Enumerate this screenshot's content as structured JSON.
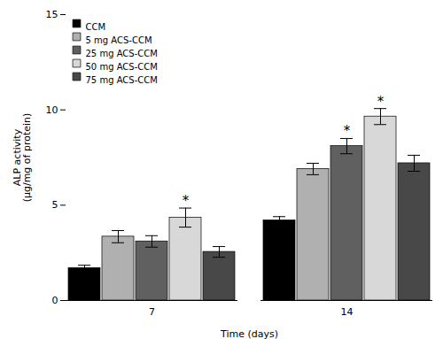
{
  "chart_data": {
    "type": "bar",
    "categories": [
      "7",
      "14"
    ],
    "xlabel": "Time (days)",
    "ylabel": "ALP activity\n(μg/mg of protein)",
    "series": [
      {
        "name": "CCM",
        "color": "#000000",
        "values": [
          1.7,
          4.2
        ],
        "errors": [
          0.15,
          0.2
        ]
      },
      {
        "name": "5 mg ACS-CCM",
        "color": "#b0b0b0",
        "values": [
          3.35,
          6.9
        ],
        "errors": [
          0.32,
          0.3
        ]
      },
      {
        "name": "25 mg ACS-CCM",
        "color": "#606060",
        "values": [
          3.1,
          8.1
        ],
        "errors": [
          0.3,
          0.4
        ]
      },
      {
        "name": "50 mg ACS-CCM",
        "color": "#d8d8d8",
        "values": [
          4.35,
          9.65
        ],
        "errors": [
          0.5,
          0.42
        ]
      },
      {
        "name": "75 mg ACS-CCM",
        "color": "#484848",
        "values": [
          2.55,
          7.2
        ],
        "errors": [
          0.28,
          0.42
        ]
      }
    ],
    "annotations": [
      {
        "text": "*",
        "category": "7",
        "series": "50 mg ACS-CCM"
      },
      {
        "text": "*",
        "category": "14",
        "series": "25 mg ACS-CCM"
      },
      {
        "text": "*",
        "category": "14",
        "series": "50 mg ACS-CCM"
      }
    ],
    "ylim": [
      0,
      15
    ],
    "yticks": [
      0,
      5,
      10,
      15
    ],
    "legend": "upper left"
  }
}
